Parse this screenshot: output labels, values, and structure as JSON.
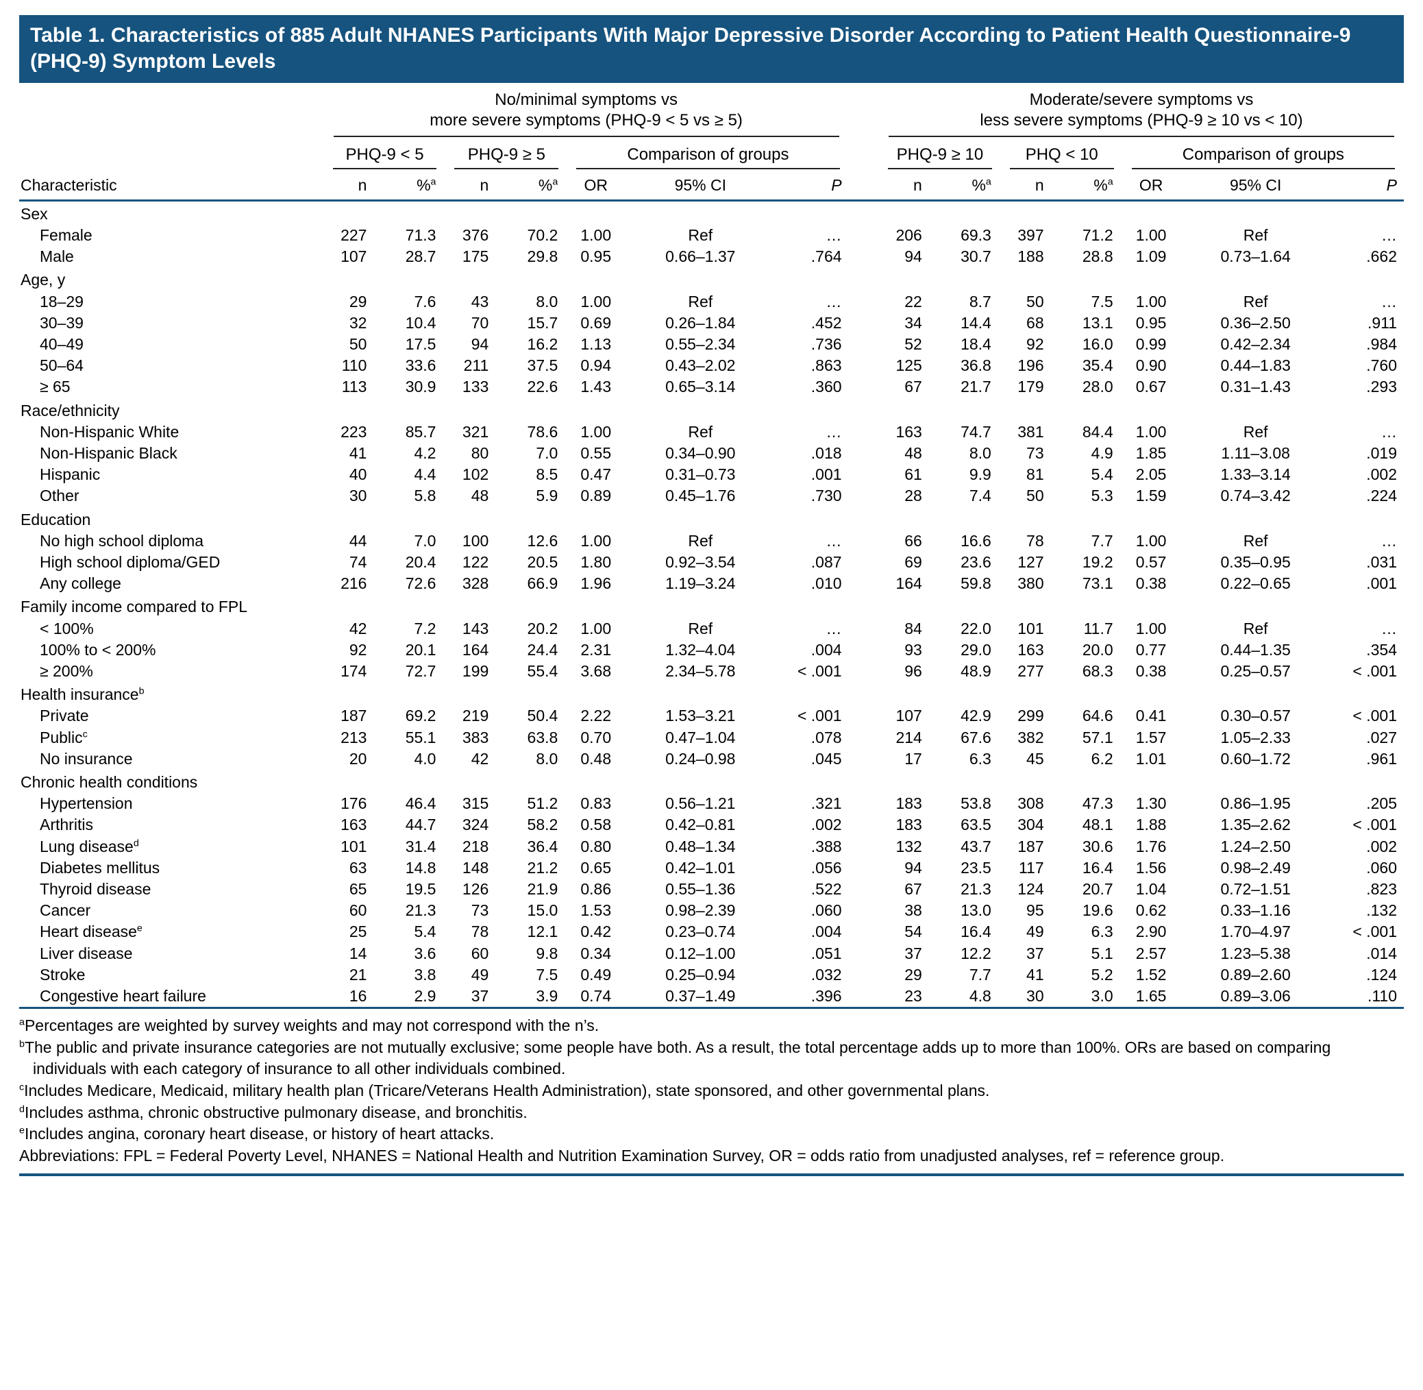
{
  "colors": {
    "banner_blue": "#16537e",
    "rule_blue": "#16537e"
  },
  "title": "Table 1. Characteristics of 885 Adult NHANES Participants With Major Depressive Disorder According to Patient Health Questionnaire-9 (PHQ-9) Symptom Levels",
  "header": {
    "characteristic_label": "Characteristic",
    "spanners": [
      {
        "line1": "No/minimal symptoms vs",
        "line2": "more severe symptoms (PHQ-9 < 5 vs ≥ 5)"
      },
      {
        "line1": "Moderate/severe symptoms vs",
        "line2": "less severe symptoms (PHQ-9 ≥ 10 vs < 10)"
      }
    ],
    "subspanners": [
      "PHQ-9 < 5",
      "PHQ-9 ≥ 5",
      "Comparison of groups",
      "PHQ-9 ≥ 10",
      "PHQ < 10",
      "Comparison of groups"
    ],
    "cols": {
      "n": "n",
      "pct": "%",
      "pct_sup": "a",
      "or": "OR",
      "ci": "95% CI",
      "p": "P"
    }
  },
  "sections": [
    {
      "label": "Sex",
      "sup": "",
      "rows": [
        {
          "label": "Female",
          "sup": "",
          "v": [
            "227",
            "71.3",
            "376",
            "70.2",
            "1.00",
            "Ref",
            "…",
            "206",
            "69.3",
            "397",
            "71.2",
            "1.00",
            "Ref",
            "…"
          ]
        },
        {
          "label": "Male",
          "sup": "",
          "v": [
            "107",
            "28.7",
            "175",
            "29.8",
            "0.95",
            "0.66–1.37",
            ".764",
            "94",
            "30.7",
            "188",
            "28.8",
            "1.09",
            "0.73–1.64",
            ".662"
          ]
        }
      ]
    },
    {
      "label": "Age, y",
      "sup": "",
      "rows": [
        {
          "label": "18–29",
          "sup": "",
          "v": [
            "29",
            "7.6",
            "43",
            "8.0",
            "1.00",
            "Ref",
            "…",
            "22",
            "8.7",
            "50",
            "7.5",
            "1.00",
            "Ref",
            "…"
          ]
        },
        {
          "label": "30–39",
          "sup": "",
          "v": [
            "32",
            "10.4",
            "70",
            "15.7",
            "0.69",
            "0.26–1.84",
            ".452",
            "34",
            "14.4",
            "68",
            "13.1",
            "0.95",
            "0.36–2.50",
            ".911"
          ]
        },
        {
          "label": "40–49",
          "sup": "",
          "v": [
            "50",
            "17.5",
            "94",
            "16.2",
            "1.13",
            "0.55–2.34",
            ".736",
            "52",
            "18.4",
            "92",
            "16.0",
            "0.99",
            "0.42–2.34",
            ".984"
          ]
        },
        {
          "label": "50–64",
          "sup": "",
          "v": [
            "110",
            "33.6",
            "211",
            "37.5",
            "0.94",
            "0.43–2.02",
            ".863",
            "125",
            "36.8",
            "196",
            "35.4",
            "0.90",
            "0.44–1.83",
            ".760"
          ]
        },
        {
          "label": "≥ 65",
          "sup": "",
          "v": [
            "113",
            "30.9",
            "133",
            "22.6",
            "1.43",
            "0.65–3.14",
            ".360",
            "67",
            "21.7",
            "179",
            "28.0",
            "0.67",
            "0.31–1.43",
            ".293"
          ]
        }
      ]
    },
    {
      "label": "Race/ethnicity",
      "sup": "",
      "rows": [
        {
          "label": "Non-Hispanic White",
          "sup": "",
          "v": [
            "223",
            "85.7",
            "321",
            "78.6",
            "1.00",
            "Ref",
            "…",
            "163",
            "74.7",
            "381",
            "84.4",
            "1.00",
            "Ref",
            "…"
          ]
        },
        {
          "label": "Non-Hispanic Black",
          "sup": "",
          "v": [
            "41",
            "4.2",
            "80",
            "7.0",
            "0.55",
            "0.34–0.90",
            ".018",
            "48",
            "8.0",
            "73",
            "4.9",
            "1.85",
            "1.11–3.08",
            ".019"
          ]
        },
        {
          "label": "Hispanic",
          "sup": "",
          "v": [
            "40",
            "4.4",
            "102",
            "8.5",
            "0.47",
            "0.31–0.73",
            ".001",
            "61",
            "9.9",
            "81",
            "5.4",
            "2.05",
            "1.33–3.14",
            ".002"
          ]
        },
        {
          "label": "Other",
          "sup": "",
          "v": [
            "30",
            "5.8",
            "48",
            "5.9",
            "0.89",
            "0.45–1.76",
            ".730",
            "28",
            "7.4",
            "50",
            "5.3",
            "1.59",
            "0.74–3.42",
            ".224"
          ]
        }
      ]
    },
    {
      "label": "Education",
      "sup": "",
      "rows": [
        {
          "label": "No high school diploma",
          "sup": "",
          "v": [
            "44",
            "7.0",
            "100",
            "12.6",
            "1.00",
            "Ref",
            "…",
            "66",
            "16.6",
            "78",
            "7.7",
            "1.00",
            "Ref",
            "…"
          ]
        },
        {
          "label": "High school diploma/GED",
          "sup": "",
          "v": [
            "74",
            "20.4",
            "122",
            "20.5",
            "1.80",
            "0.92–3.54",
            ".087",
            "69",
            "23.6",
            "127",
            "19.2",
            "0.57",
            "0.35–0.95",
            ".031"
          ]
        },
        {
          "label": "Any college",
          "sup": "",
          "v": [
            "216",
            "72.6",
            "328",
            "66.9",
            "1.96",
            "1.19–3.24",
            ".010",
            "164",
            "59.8",
            "380",
            "73.1",
            "0.38",
            "0.22–0.65",
            ".001"
          ]
        }
      ]
    },
    {
      "label": "Family income compared to FPL",
      "sup": "",
      "rows": [
        {
          "label": "< 100%",
          "sup": "",
          "v": [
            "42",
            "7.2",
            "143",
            "20.2",
            "1.00",
            "Ref",
            "…",
            "84",
            "22.0",
            "101",
            "11.7",
            "1.00",
            "Ref",
            "…"
          ]
        },
        {
          "label": "100% to < 200%",
          "sup": "",
          "v": [
            "92",
            "20.1",
            "164",
            "24.4",
            "2.31",
            "1.32–4.04",
            ".004",
            "93",
            "29.0",
            "163",
            "20.0",
            "0.77",
            "0.44–1.35",
            ".354"
          ]
        },
        {
          "label": "≥ 200%",
          "sup": "",
          "v": [
            "174",
            "72.7",
            "199",
            "55.4",
            "3.68",
            "2.34–5.78",
            "< .001",
            "96",
            "48.9",
            "277",
            "68.3",
            "0.38",
            "0.25–0.57",
            "< .001"
          ]
        }
      ]
    },
    {
      "label": "Health insurance",
      "sup": "b",
      "rows": [
        {
          "label": "Private",
          "sup": "",
          "v": [
            "187",
            "69.2",
            "219",
            "50.4",
            "2.22",
            "1.53–3.21",
            "< .001",
            "107",
            "42.9",
            "299",
            "64.6",
            "0.41",
            "0.30–0.57",
            "< .001"
          ]
        },
        {
          "label": "Public",
          "sup": "c",
          "v": [
            "213",
            "55.1",
            "383",
            "63.8",
            "0.70",
            "0.47–1.04",
            ".078",
            "214",
            "67.6",
            "382",
            "57.1",
            "1.57",
            "1.05–2.33",
            ".027"
          ]
        },
        {
          "label": "No insurance",
          "sup": "",
          "v": [
            "20",
            "4.0",
            "42",
            "8.0",
            "0.48",
            "0.24–0.98",
            ".045",
            "17",
            "6.3",
            "45",
            "6.2",
            "1.01",
            "0.60–1.72",
            ".961"
          ]
        }
      ]
    },
    {
      "label": "Chronic health conditions",
      "sup": "",
      "rows": [
        {
          "label": "Hypertension",
          "sup": "",
          "v": [
            "176",
            "46.4",
            "315",
            "51.2",
            "0.83",
            "0.56–1.21",
            ".321",
            "183",
            "53.8",
            "308",
            "47.3",
            "1.30",
            "0.86–1.95",
            ".205"
          ]
        },
        {
          "label": "Arthritis",
          "sup": "",
          "v": [
            "163",
            "44.7",
            "324",
            "58.2",
            "0.58",
            "0.42–0.81",
            ".002",
            "183",
            "63.5",
            "304",
            "48.1",
            "1.88",
            "1.35–2.62",
            "< .001"
          ]
        },
        {
          "label": "Lung disease",
          "sup": "d",
          "v": [
            "101",
            "31.4",
            "218",
            "36.4",
            "0.80",
            "0.48–1.34",
            ".388",
            "132",
            "43.7",
            "187",
            "30.6",
            "1.76",
            "1.24–2.50",
            ".002"
          ]
        },
        {
          "label": "Diabetes mellitus",
          "sup": "",
          "v": [
            "63",
            "14.8",
            "148",
            "21.2",
            "0.65",
            "0.42–1.01",
            ".056",
            "94",
            "23.5",
            "117",
            "16.4",
            "1.56",
            "0.98–2.49",
            ".060"
          ]
        },
        {
          "label": "Thyroid disease",
          "sup": "",
          "v": [
            "65",
            "19.5",
            "126",
            "21.9",
            "0.86",
            "0.55–1.36",
            ".522",
            "67",
            "21.3",
            "124",
            "20.7",
            "1.04",
            "0.72–1.51",
            ".823"
          ]
        },
        {
          "label": "Cancer",
          "sup": "",
          "v": [
            "60",
            "21.3",
            "73",
            "15.0",
            "1.53",
            "0.98–2.39",
            ".060",
            "38",
            "13.0",
            "95",
            "19.6",
            "0.62",
            "0.33–1.16",
            ".132"
          ]
        },
        {
          "label": "Heart disease",
          "sup": "e",
          "v": [
            "25",
            "5.4",
            "78",
            "12.1",
            "0.42",
            "0.23–0.74",
            ".004",
            "54",
            "16.4",
            "49",
            "6.3",
            "2.90",
            "1.70–4.97",
            "< .001"
          ]
        },
        {
          "label": "Liver disease",
          "sup": "",
          "v": [
            "14",
            "3.6",
            "60",
            "9.8",
            "0.34",
            "0.12–1.00",
            ".051",
            "37",
            "12.2",
            "37",
            "5.1",
            "2.57",
            "1.23–5.38",
            ".014"
          ]
        },
        {
          "label": "Stroke",
          "sup": "",
          "v": [
            "21",
            "3.8",
            "49",
            "7.5",
            "0.49",
            "0.25–0.94",
            ".032",
            "29",
            "7.7",
            "41",
            "5.2",
            "1.52",
            "0.89–2.60",
            ".124"
          ]
        },
        {
          "label": "Congestive heart failure",
          "sup": "",
          "v": [
            "16",
            "2.9",
            "37",
            "3.9",
            "0.74",
            "0.37–1.49",
            ".396",
            "23",
            "4.8",
            "30",
            "3.0",
            "1.65",
            "0.89–3.06",
            ".110"
          ]
        }
      ]
    }
  ],
  "footnotes": [
    {
      "sup": "a",
      "text": "Percentages are weighted by survey weights and may not correspond with the n’s."
    },
    {
      "sup": "b",
      "text": "The public and private insurance categories are not mutually exclusive; some people have both. As a result, the total percentage adds up to more than 100%. ORs are based on comparing individuals with each category of insurance to all other individuals combined."
    },
    {
      "sup": "c",
      "text": "Includes Medicare, Medicaid, military health plan (Tricare/Veterans Health Administration), state sponsored, and other governmental plans."
    },
    {
      "sup": "d",
      "text": "Includes asthma, chronic obstructive pulmonary disease, and bronchitis."
    },
    {
      "sup": "e",
      "text": "Includes angina, coronary heart disease, or history of heart attacks."
    },
    {
      "sup": "",
      "text": "Abbreviations: FPL = Federal Poverty Level, NHANES = National Health and Nutrition Examination Survey, OR = odds ratio from unadjusted analyses, ref = reference group."
    }
  ]
}
